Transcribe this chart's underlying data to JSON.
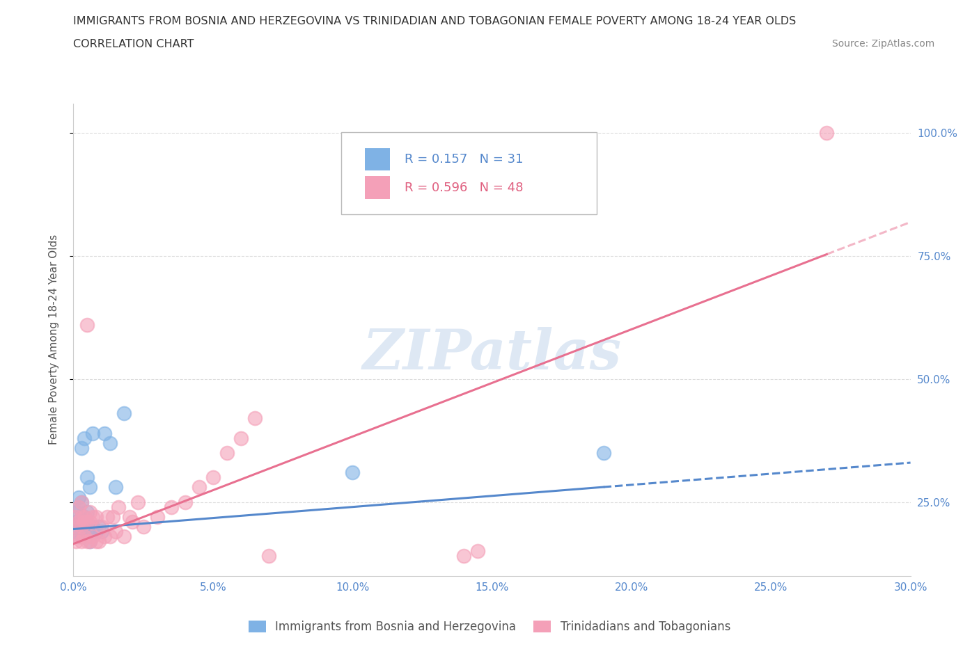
{
  "title_line1": "IMMIGRANTS FROM BOSNIA AND HERZEGOVINA VS TRINIDADIAN AND TOBAGONIAN FEMALE POVERTY AMONG 18-24 YEAR OLDS",
  "title_line2": "CORRELATION CHART",
  "source_text": "Source: ZipAtlas.com",
  "ylabel": "Female Poverty Among 18-24 Year Olds",
  "xlim": [
    0.0,
    0.3
  ],
  "ylim": [
    0.1,
    1.06
  ],
  "xtick_labels": [
    "0.0%",
    "5.0%",
    "10.0%",
    "15.0%",
    "20.0%",
    "25.0%",
    "30.0%"
  ],
  "xtick_values": [
    0.0,
    0.05,
    0.1,
    0.15,
    0.2,
    0.25,
    0.3
  ],
  "ytick_labels": [
    "25.0%",
    "50.0%",
    "75.0%",
    "100.0%"
  ],
  "ytick_values": [
    0.25,
    0.5,
    0.75,
    1.0
  ],
  "grid_color": "#dddddd",
  "watermark_text": "ZIPatlas",
  "legend_R1": "R = 0.157",
  "legend_N1": "N = 31",
  "legend_R2": "R = 0.596",
  "legend_N2": "N = 48",
  "color_bosnia": "#7fb2e5",
  "color_trinidad": "#f4a0b8",
  "color_trend_bosnia": "#5588cc",
  "color_trend_trinidad": "#e87090",
  "legend_label1": "Immigrants from Bosnia and Herzegovina",
  "legend_label2": "Trinidadians and Tobagonians",
  "bosnia_scatter_x": [
    0.001,
    0.001,
    0.001,
    0.002,
    0.002,
    0.002,
    0.002,
    0.003,
    0.003,
    0.003,
    0.003,
    0.003,
    0.004,
    0.004,
    0.004,
    0.005,
    0.005,
    0.005,
    0.006,
    0.006,
    0.007,
    0.007,
    0.008,
    0.009,
    0.01,
    0.011,
    0.013,
    0.015,
    0.018,
    0.1,
    0.19
  ],
  "bosnia_scatter_y": [
    0.19,
    0.21,
    0.23,
    0.18,
    0.21,
    0.24,
    0.26,
    0.18,
    0.21,
    0.22,
    0.25,
    0.36,
    0.2,
    0.22,
    0.38,
    0.19,
    0.23,
    0.3,
    0.17,
    0.28,
    0.2,
    0.39,
    0.19,
    0.2,
    0.19,
    0.39,
    0.37,
    0.28,
    0.43,
    0.31,
    0.35
  ],
  "trinidad_scatter_x": [
    0.001,
    0.001,
    0.001,
    0.002,
    0.002,
    0.002,
    0.003,
    0.003,
    0.003,
    0.003,
    0.004,
    0.004,
    0.004,
    0.005,
    0.005,
    0.005,
    0.006,
    0.006,
    0.006,
    0.007,
    0.007,
    0.008,
    0.008,
    0.009,
    0.01,
    0.011,
    0.012,
    0.013,
    0.014,
    0.015,
    0.016,
    0.018,
    0.02,
    0.021,
    0.023,
    0.025,
    0.03,
    0.035,
    0.04,
    0.045,
    0.05,
    0.055,
    0.06,
    0.065,
    0.07,
    0.14,
    0.145,
    0.27
  ],
  "trinidad_scatter_y": [
    0.17,
    0.2,
    0.22,
    0.18,
    0.21,
    0.24,
    0.17,
    0.2,
    0.22,
    0.25,
    0.18,
    0.21,
    0.22,
    0.17,
    0.21,
    0.61,
    0.17,
    0.21,
    0.23,
    0.18,
    0.22,
    0.17,
    0.22,
    0.17,
    0.2,
    0.18,
    0.22,
    0.18,
    0.22,
    0.19,
    0.24,
    0.18,
    0.22,
    0.21,
    0.25,
    0.2,
    0.22,
    0.24,
    0.25,
    0.28,
    0.3,
    0.35,
    0.38,
    0.42,
    0.14,
    0.14,
    0.15,
    1.0
  ],
  "trend_x_start": 0.0,
  "trend_x_end": 0.3,
  "bosnia_trend_intercept": 0.195,
  "bosnia_trend_slope": 0.45,
  "trinidad_trend_intercept": 0.165,
  "trinidad_trend_slope": 2.18,
  "bosnia_trend_solid_end": 0.19,
  "trinidad_trend_solid_end": 0.27
}
